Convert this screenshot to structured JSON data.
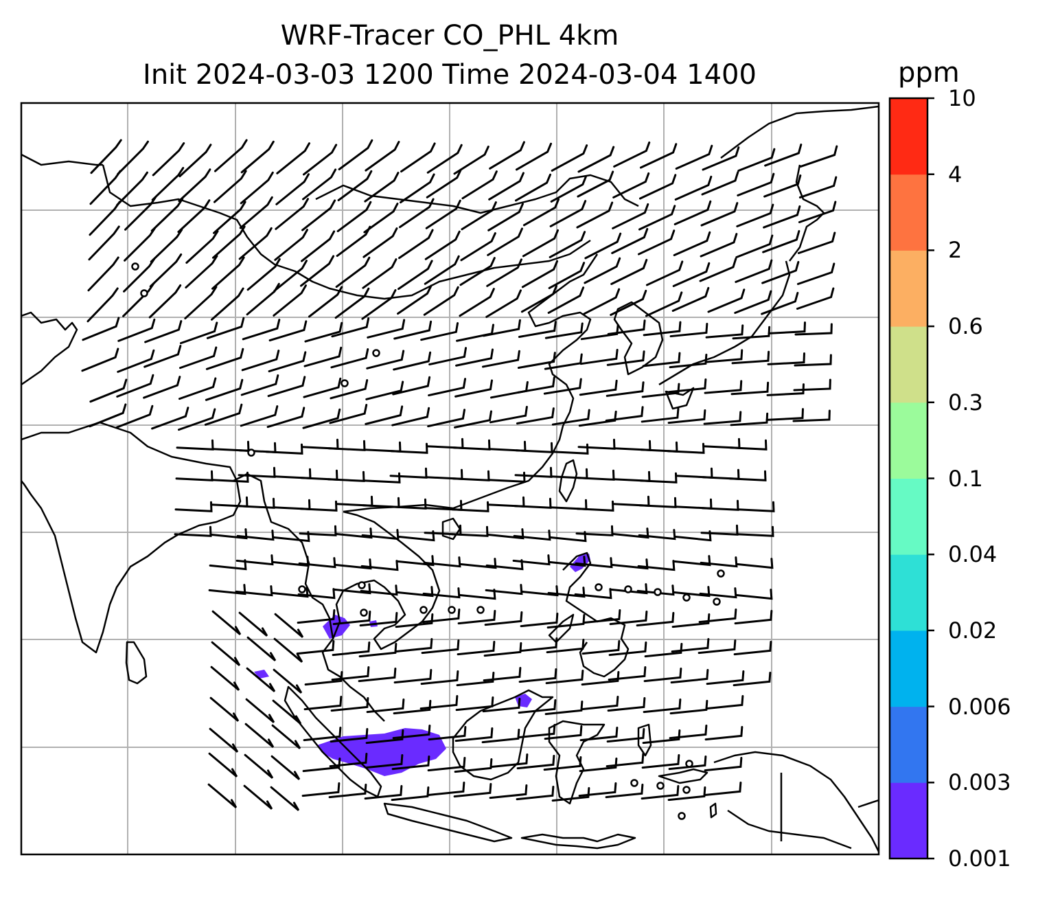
{
  "title": {
    "line1": "WRF-Tracer CO_PHL 4km",
    "line2": "Init 2024-03-03 1200 Time 2024-03-04 1400"
  },
  "colorbar": {
    "unit": "ppm",
    "ticks": [
      "0.001",
      "0.003",
      "0.006",
      "0.02",
      "0.04",
      "0.1",
      "0.3",
      "0.6",
      "2",
      "4",
      "10"
    ],
    "colors": [
      "#6a2bff",
      "#3276f0",
      "#00b2ee",
      "#2ee0d6",
      "#66fac4",
      "#9bfb9b",
      "#cfe08a",
      "#fcaf62",
      "#fe7340",
      "#ff2a14"
    ]
  },
  "map": {
    "gridlines": {
      "vertical": 7,
      "horizontal": 6
    },
    "coastline_color": "#000000",
    "gridline_color": "#b0b0b0",
    "tracer_color": "#6a2bff"
  }
}
